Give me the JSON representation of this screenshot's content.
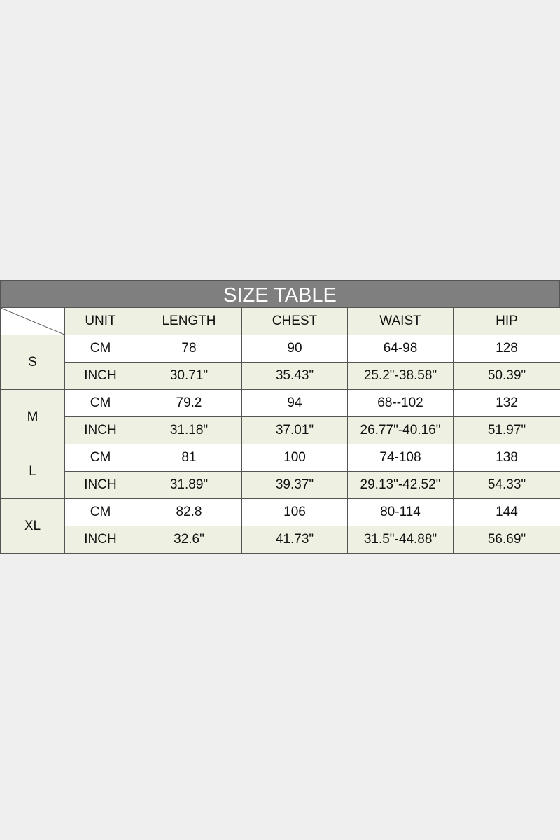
{
  "title": "SIZE TABLE",
  "headers": [
    "UNIT",
    "LENGTH",
    "CHEST",
    "WAIST",
    "HIP"
  ],
  "sizes": [
    {
      "size": "S",
      "rows": [
        {
          "unit": "CM",
          "values": [
            "78",
            "90",
            "64-98",
            "128"
          ]
        },
        {
          "unit": "INCH",
          "values": [
            "30.71\"",
            "35.43\"",
            "25.2\"-38.58\"",
            "50.39\""
          ]
        }
      ]
    },
    {
      "size": "M",
      "rows": [
        {
          "unit": "CM",
          "values": [
            "79.2",
            "94",
            "68--102",
            "132"
          ]
        },
        {
          "unit": "INCH",
          "values": [
            "31.18\"",
            "37.01\"",
            "26.77\"-40.16\"",
            "51.97\""
          ]
        }
      ]
    },
    {
      "size": "L",
      "rows": [
        {
          "unit": "CM",
          "values": [
            "81",
            "100",
            "74-108",
            "138"
          ]
        },
        {
          "unit": "INCH",
          "values": [
            "31.89\"",
            "39.37\"",
            "29.13\"-42.52\"",
            "54.33\""
          ]
        }
      ]
    },
    {
      "size": "XL",
      "rows": [
        {
          "unit": "CM",
          "values": [
            "82.8",
            "106",
            "80-114",
            "144"
          ]
        },
        {
          "unit": "INCH",
          "values": [
            "32.6\"",
            "41.73\"",
            "31.5\"-44.88\"",
            "56.69\""
          ]
        }
      ]
    }
  ],
  "colors": {
    "title_bg": "#7f7f7f",
    "cell_green": "#eef1e1",
    "page_bg": "#efefef"
  }
}
